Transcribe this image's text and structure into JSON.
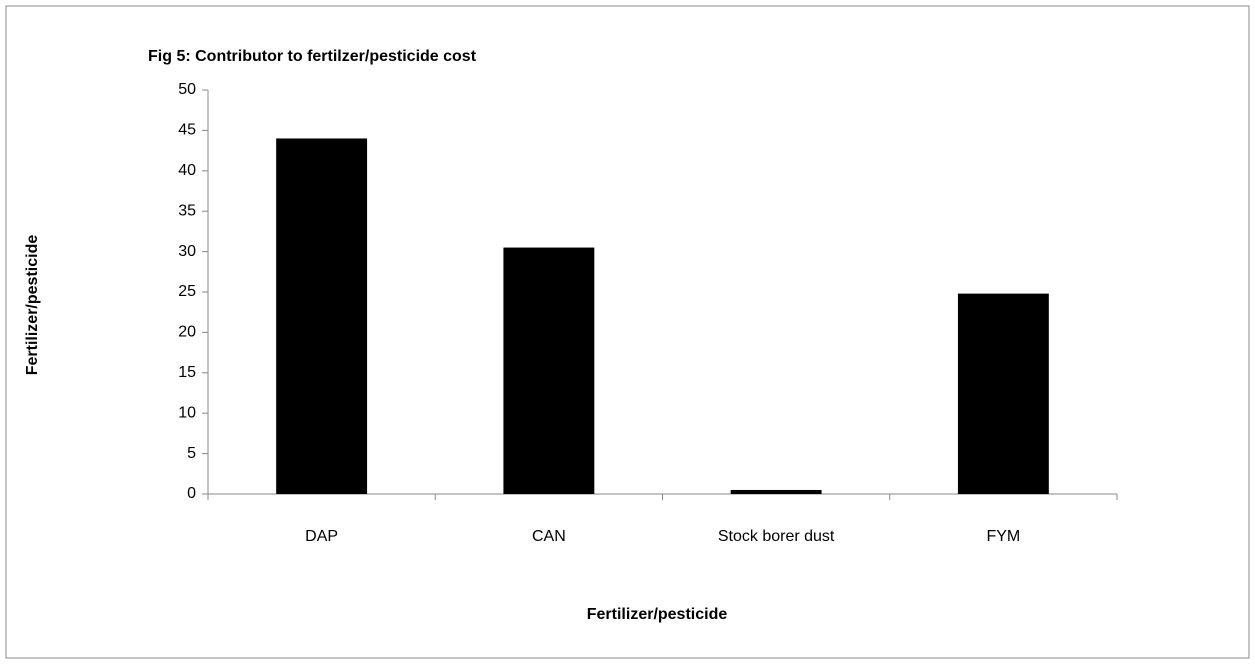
{
  "chart_data": {
    "type": "bar",
    "title": "Fig 5: Contributor to fertilzer/pesticide  cost",
    "x_label": "Fertilizer/pesticide",
    "y_label": "Fertilizer/pesticide",
    "categories": [
      "DAP",
      "CAN",
      "Stock borer dust",
      "FYM"
    ],
    "values": [
      44,
      30.5,
      0.5,
      24.8
    ],
    "color": "#000000",
    "ylim": [
      0,
      50
    ],
    "yticks": [
      0,
      5,
      10,
      15,
      20,
      25,
      30,
      35,
      40,
      45,
      50
    ],
    "grid": false
  }
}
